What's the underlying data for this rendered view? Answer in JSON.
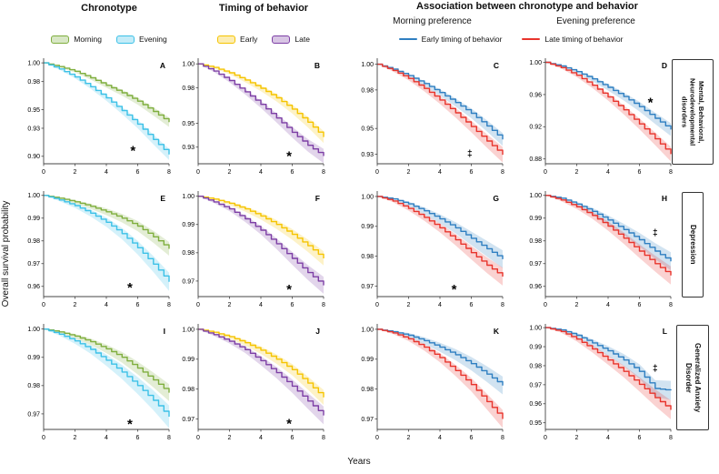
{
  "header": {
    "col1": "Chronotype",
    "col2": "Timing of behavior",
    "col34": "Association between chronotype and behavior",
    "sub_col3": "Morning preference",
    "sub_col4": "Evening preference"
  },
  "legends": {
    "chronotype": [
      {
        "label": "Morning",
        "color": "#7fae3e"
      },
      {
        "label": "Evening",
        "color": "#3cc1e7"
      }
    ],
    "timing": [
      {
        "label": "Early",
        "color": "#f5c400"
      },
      {
        "label": "Late",
        "color": "#7d3fa5"
      }
    ],
    "association": [
      {
        "label": "Early timing of behavior",
        "color": "#2f7fc1"
      },
      {
        "label": "Late timing of behavior",
        "color": "#e8342c"
      }
    ]
  },
  "axes": {
    "ylabel": "Overall survival probability",
    "xlabel": "Years"
  },
  "row_labels": [
    "Mental, Behavioral, Neurodevelopmental disorders",
    "Depression",
    "Generalized Anxiety Disorder"
  ],
  "chart_data": {
    "type": "line",
    "figure": "Kaplan-Meier overall survival probability curves",
    "x": [
      0,
      1,
      2,
      3,
      4,
      5,
      6,
      7,
      8
    ],
    "xticks": [
      "0",
      "2",
      "4",
      "6",
      "8"
    ],
    "xlabel": "Years",
    "ylabel": "Overall survival probability",
    "panels": [
      {
        "label": "A",
        "group": "Chronotype",
        "row_label": "Mental, Behavioral, Neurodevelopmental disorders",
        "ylim": [
          0.892,
          1.004
        ],
        "yticks": [
          "1.00",
          "0.98",
          "0.95",
          "0.93",
          "0.90"
        ],
        "marker": {
          "text": "*",
          "x": 5.7,
          "y": 0.906
        },
        "series": [
          {
            "name": "Morning",
            "color": "#7fae3e",
            "band": 0.005,
            "values": [
              1.0,
              0.996,
              0.991,
              0.984,
              0.976,
              0.968,
              0.959,
              0.948,
              0.9365
            ]
          },
          {
            "name": "Evening",
            "color": "#3cc1e7",
            "band": 0.006,
            "values": [
              1.0,
              0.9935,
              0.985,
              0.9745,
              0.9625,
              0.949,
              0.9345,
              0.918,
              0.902
            ]
          }
        ]
      },
      {
        "label": "B",
        "group": "Timing of behavior",
        "row_label": "Mental, Behavioral, Neurodevelopmental disorders",
        "ylim": [
          0.916,
          1.004
        ],
        "yticks": [
          "1.00",
          "0.98",
          "0.95",
          "0.93"
        ],
        "marker": {
          "text": "*",
          "x": 5.8,
          "y": 0.9225
        },
        "series": [
          {
            "name": "Early",
            "color": "#f5c400",
            "band": 0.005,
            "values": [
              1.0,
              0.997,
              0.9925,
              0.9865,
              0.9795,
              0.9715,
              0.962,
              0.951,
              0.9385
            ]
          },
          {
            "name": "Late",
            "color": "#7d3fa5",
            "band": 0.006,
            "values": [
              1.0,
              0.994,
              0.986,
              0.9765,
              0.966,
              0.9545,
              0.9425,
              0.9315,
              0.9225
            ]
          }
        ]
      },
      {
        "label": "C",
        "group": "Morning preference",
        "row_label": "Mental, Behavioral, Neurodevelopmental disorders",
        "ylim": [
          0.9225,
          1.004
        ],
        "yticks": [
          "1.00",
          "0.98",
          "0.95",
          "0.93"
        ],
        "marker": {
          "text": "‡",
          "x": 5.9,
          "y": 0.9295
        },
        "series": [
          {
            "name": "Early timing of behavior",
            "color": "#2f7fc1",
            "band": 0.005,
            "values": [
              1.0,
              0.9962,
              0.9912,
              0.985,
              0.978,
              0.9702,
              0.9618,
              0.952,
              0.9415
            ]
          },
          {
            "name": "Late timing of behavior",
            "color": "#e8342c",
            "band": 0.006,
            "values": [
              1.0,
              0.9952,
              0.989,
              0.9812,
              0.9722,
              0.9622,
              0.9515,
              0.9402,
              0.9295
            ]
          }
        ]
      },
      {
        "label": "D",
        "group": "Evening preference",
        "row_label": "Mental, Behavioral, Neurodevelopmental disorders",
        "ylim": [
          0.874,
          1.004
        ],
        "yticks": [
          "1.00",
          "0.96",
          "0.92",
          "0.88"
        ],
        "marker": {
          "text": "*",
          "x": 6.7,
          "y": 0.9505
        },
        "series": [
          {
            "name": "Early timing of behavior",
            "color": "#2f7fc1",
            "band": 0.008,
            "values": [
              1.0,
              0.9955,
              0.9885,
              0.9795,
              0.969,
              0.9575,
              0.945,
              0.9305,
              0.9165
            ]
          },
          {
            "name": "Late timing of behavior",
            "color": "#e8342c",
            "band": 0.009,
            "values": [
              1.0,
              0.9935,
              0.984,
              0.9715,
              0.957,
              0.941,
              0.9235,
              0.905,
              0.886
            ]
          }
        ]
      },
      {
        "label": "E",
        "group": "Chronotype",
        "row_label": "Depression",
        "ylim": [
          0.9555,
          1.0015
        ],
        "yticks": [
          "1.00",
          "0.99",
          "0.98",
          "0.97",
          "0.96"
        ],
        "marker": {
          "text": "*",
          "x": 5.5,
          "y": 0.9595
        },
        "series": [
          {
            "name": "Morning",
            "color": "#7fae3e",
            "band": 0.003,
            "values": [
              1.0,
              0.9988,
              0.9972,
              0.9952,
              0.9928,
              0.99,
              0.9865,
              0.9818,
              0.9765
            ]
          },
          {
            "name": "Evening",
            "color": "#3cc1e7",
            "band": 0.004,
            "values": [
              1.0,
              0.998,
              0.9955,
              0.9922,
              0.9882,
              0.9832,
              0.977,
              0.9698,
              0.962
            ]
          }
        ]
      },
      {
        "label": "F",
        "group": "Timing of behavior",
        "row_label": "Depression",
        "ylim": [
          0.9645,
          1.0015
        ],
        "yticks": [
          "1.00",
          "0.99",
          "0.98",
          "0.97"
        ],
        "marker": {
          "text": "*",
          "x": 5.8,
          "y": 0.967
        },
        "series": [
          {
            "name": "Early",
            "color": "#f5c400",
            "band": 0.0025,
            "values": [
              1.0,
              0.999,
              0.9975,
              0.9955,
              0.993,
              0.99,
              0.9865,
              0.9825,
              0.978
            ]
          },
          {
            "name": "Late",
            "color": "#7d3fa5",
            "band": 0.003,
            "values": [
              1.0,
              0.998,
              0.9955,
              0.992,
              0.988,
              0.9832,
              0.978,
              0.973,
              0.9685
            ]
          }
        ]
      },
      {
        "label": "G",
        "group": "Morning preference",
        "row_label": "Depression",
        "ylim": [
          0.9665,
          1.0015
        ],
        "yticks": [
          "1.00",
          "0.99",
          "0.98",
          "0.97"
        ],
        "marker": {
          "text": "*",
          "x": 4.9,
          "y": 0.969
        },
        "series": [
          {
            "name": "Early timing of behavior",
            "color": "#2f7fc1",
            "band": 0.003,
            "values": [
              1.0,
              0.9992,
              0.9975,
              0.9952,
              0.9925,
              0.9895,
              0.986,
              0.9825,
              0.979
            ]
          },
          {
            "name": "Late timing of behavior",
            "color": "#e8342c",
            "band": 0.003,
            "values": [
              1.0,
              0.9985,
              0.996,
              0.993,
              0.9895,
              0.9855,
              0.9812,
              0.977,
              0.9732
            ]
          }
        ]
      },
      {
        "label": "H",
        "group": "Evening preference",
        "row_label": "Depression",
        "ylim": [
          0.9555,
          1.0015
        ],
        "yticks": [
          "1.00",
          "0.99",
          "0.98",
          "0.97",
          "0.96"
        ],
        "marker": {
          "text": "‡",
          "x": 7.0,
          "y": 0.9832
        },
        "series": [
          {
            "name": "Early timing of behavior",
            "color": "#2f7fc1",
            "band": 0.004,
            "values": [
              1.0,
              0.9988,
              0.9962,
              0.993,
              0.9892,
              0.985,
              0.9805,
              0.9755,
              0.971
            ]
          },
          {
            "name": "Late timing of behavior",
            "color": "#e8342c",
            "band": 0.004,
            "values": [
              1.0,
              0.998,
              0.995,
              0.9912,
              0.9865,
              0.9812,
              0.9755,
              0.97,
              0.9648
            ]
          }
        ]
      },
      {
        "label": "I",
        "group": "Chronotype",
        "row_label": "Generalized Anxiety Disorder",
        "ylim": [
          0.9645,
          1.0015
        ],
        "yticks": [
          "1.00",
          "0.99",
          "0.98",
          "0.97"
        ],
        "marker": {
          "text": "*",
          "x": 5.5,
          "y": 0.9665
        },
        "series": [
          {
            "name": "Morning",
            "color": "#7fae3e",
            "band": 0.003,
            "values": [
              1.0,
              0.999,
              0.9975,
              0.9955,
              0.993,
              0.99,
              0.9862,
              0.982,
              0.9775
            ]
          },
          {
            "name": "Evening",
            "color": "#3cc1e7",
            "band": 0.004,
            "values": [
              1.0,
              0.9982,
              0.9958,
              0.9928,
              0.989,
              0.9848,
              0.98,
              0.9748,
              0.969
            ]
          }
        ]
      },
      {
        "label": "J",
        "group": "Timing of behavior",
        "row_label": "Generalized Anxiety Disorder",
        "ylim": [
          0.9665,
          1.0015
        ],
        "yticks": [
          "1.00",
          "0.99",
          "0.98",
          "0.97"
        ],
        "marker": {
          "text": "*",
          "x": 5.8,
          "y": 0.9685
        },
        "series": [
          {
            "name": "Early",
            "color": "#f5c400",
            "band": 0.0025,
            "values": [
              1.0,
              0.999,
              0.9975,
              0.9955,
              0.993,
              0.99,
              0.9865,
              0.982,
              0.9772
            ]
          },
          {
            "name": "Late",
            "color": "#7d3fa5",
            "band": 0.003,
            "values": [
              1.0,
              0.9982,
              0.996,
              0.9932,
              0.9895,
              0.9855,
              0.981,
              0.976,
              0.9712
            ]
          }
        ]
      },
      {
        "label": "K",
        "group": "Morning preference",
        "row_label": "Generalized Anxiety Disorder",
        "ylim": [
          0.9665,
          1.0015
        ],
        "yticks": [
          "1.00",
          "0.99",
          "0.98",
          "0.97"
        ],
        "marker": null,
        "series": [
          {
            "name": "Early timing of behavior",
            "color": "#2f7fc1",
            "band": 0.003,
            "values": [
              1.0,
              0.9992,
              0.998,
              0.9962,
              0.994,
              0.9915,
              0.9885,
              0.985,
              0.9812
            ]
          },
          {
            "name": "Late timing of behavior",
            "color": "#e8342c",
            "band": 0.003,
            "values": [
              1.0,
              0.9988,
              0.9968,
              0.994,
              0.9905,
              0.9862,
              0.9815,
              0.9758,
              0.97
            ]
          }
        ]
      },
      {
        "label": "L",
        "group": "Evening preference",
        "row_label": "Generalized Anxiety Disorder",
        "ylim": [
          0.9465,
          1.0015
        ],
        "yticks": [
          "1.00",
          "0.99",
          "0.98",
          "0.97",
          "0.96",
          "0.95"
        ],
        "marker": {
          "text": "‡",
          "x": 7.0,
          "y": 0.978
        },
        "series": [
          {
            "name": "Early timing of behavior",
            "color": "#2f7fc1",
            "band": 0.005,
            "values": [
              1.0,
              0.9988,
              0.996,
              0.992,
              0.9878,
              0.983,
              0.977,
              0.968,
              0.967
            ]
          },
          {
            "name": "Late timing of behavior",
            "color": "#e8342c",
            "band": 0.005,
            "values": [
              1.0,
              0.998,
              0.994,
              0.9888,
              0.983,
              0.977,
              0.9702,
              0.9632,
              0.9568
            ]
          }
        ]
      }
    ]
  }
}
